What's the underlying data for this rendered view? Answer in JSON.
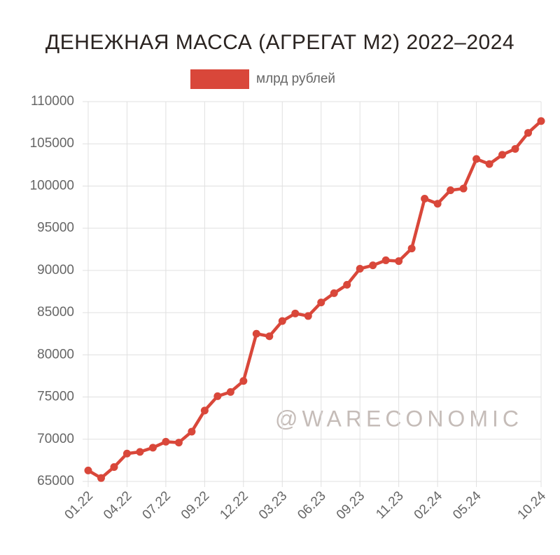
{
  "chart_data": {
    "type": "line",
    "title": "ДЕНЕЖНАЯ МАССА (АГРЕГАТ М2) 2022–2024",
    "watermark": "@WARECONOMIC",
    "categories": [
      "01.22",
      null,
      null,
      "04.22",
      null,
      null,
      "07.22",
      null,
      null,
      "09.22",
      null,
      null,
      "12.22",
      null,
      null,
      "03.23",
      null,
      null,
      "06.23",
      null,
      null,
      "09.23",
      null,
      null,
      "11.23",
      null,
      null,
      "02.24",
      null,
      null,
      "05.24",
      null,
      null,
      null,
      null,
      "10.24"
    ],
    "series": [
      {
        "name": "млрд рублей",
        "color": "#d9473a",
        "values": [
          66300,
          65400,
          66700,
          68300,
          68500,
          69000,
          69700,
          69600,
          70900,
          73400,
          75100,
          75600,
          76900,
          82500,
          82200,
          84000,
          84900,
          84600,
          86200,
          87300,
          88300,
          90200,
          90600,
          91200,
          91100,
          92600,
          98500,
          97900,
          99500,
          99700,
          103200,
          102600,
          103700,
          104400,
          106300,
          107700
        ]
      }
    ],
    "ylim": [
      65000,
      110000
    ],
    "yticks": [
      65000,
      70000,
      75000,
      80000,
      85000,
      90000,
      95000,
      100000,
      105000,
      110000
    ],
    "grid": true
  }
}
